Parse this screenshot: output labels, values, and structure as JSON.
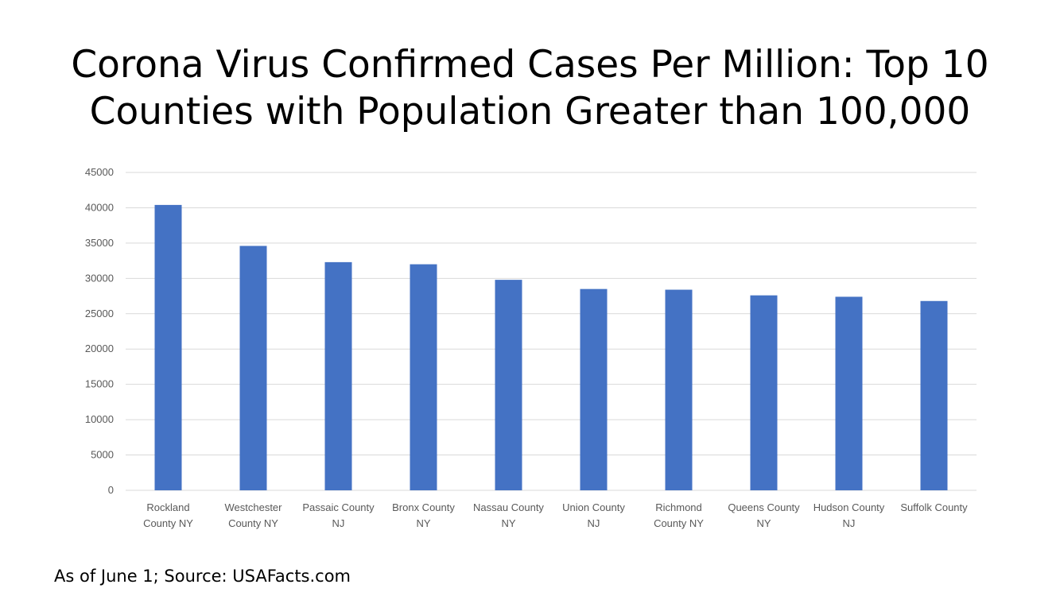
{
  "chart_data": {
    "type": "bar",
    "title_lines": [
      "Corona Virus Confirmed Cases Per Million: Top 10",
      "Counties with Population Greater than 100,000"
    ],
    "categories": [
      [
        "Rockland",
        "County NY"
      ],
      [
        "Westchester",
        "County NY"
      ],
      [
        "Passaic County",
        "NJ"
      ],
      [
        "Bronx County",
        "NY"
      ],
      [
        "Nassau County",
        "NY"
      ],
      [
        "Union County",
        "NJ"
      ],
      [
        "Richmond",
        "County NY"
      ],
      [
        "Queens County",
        "NY"
      ],
      [
        "Hudson County",
        "NJ"
      ],
      [
        "Suffolk County"
      ]
    ],
    "values": [
      40400,
      34600,
      32300,
      32000,
      29800,
      28500,
      28400,
      27600,
      27400,
      26800
    ],
    "ylim": [
      0,
      45000
    ],
    "yticks": [
      "0",
      "5000",
      "10000",
      "15000",
      "20000",
      "25000",
      "30000",
      "35000",
      "40000",
      "45000"
    ],
    "bar_color": "#4472c4",
    "grid": true,
    "legend": "none"
  },
  "footer": "As of June 1; Source: USAFacts.com"
}
